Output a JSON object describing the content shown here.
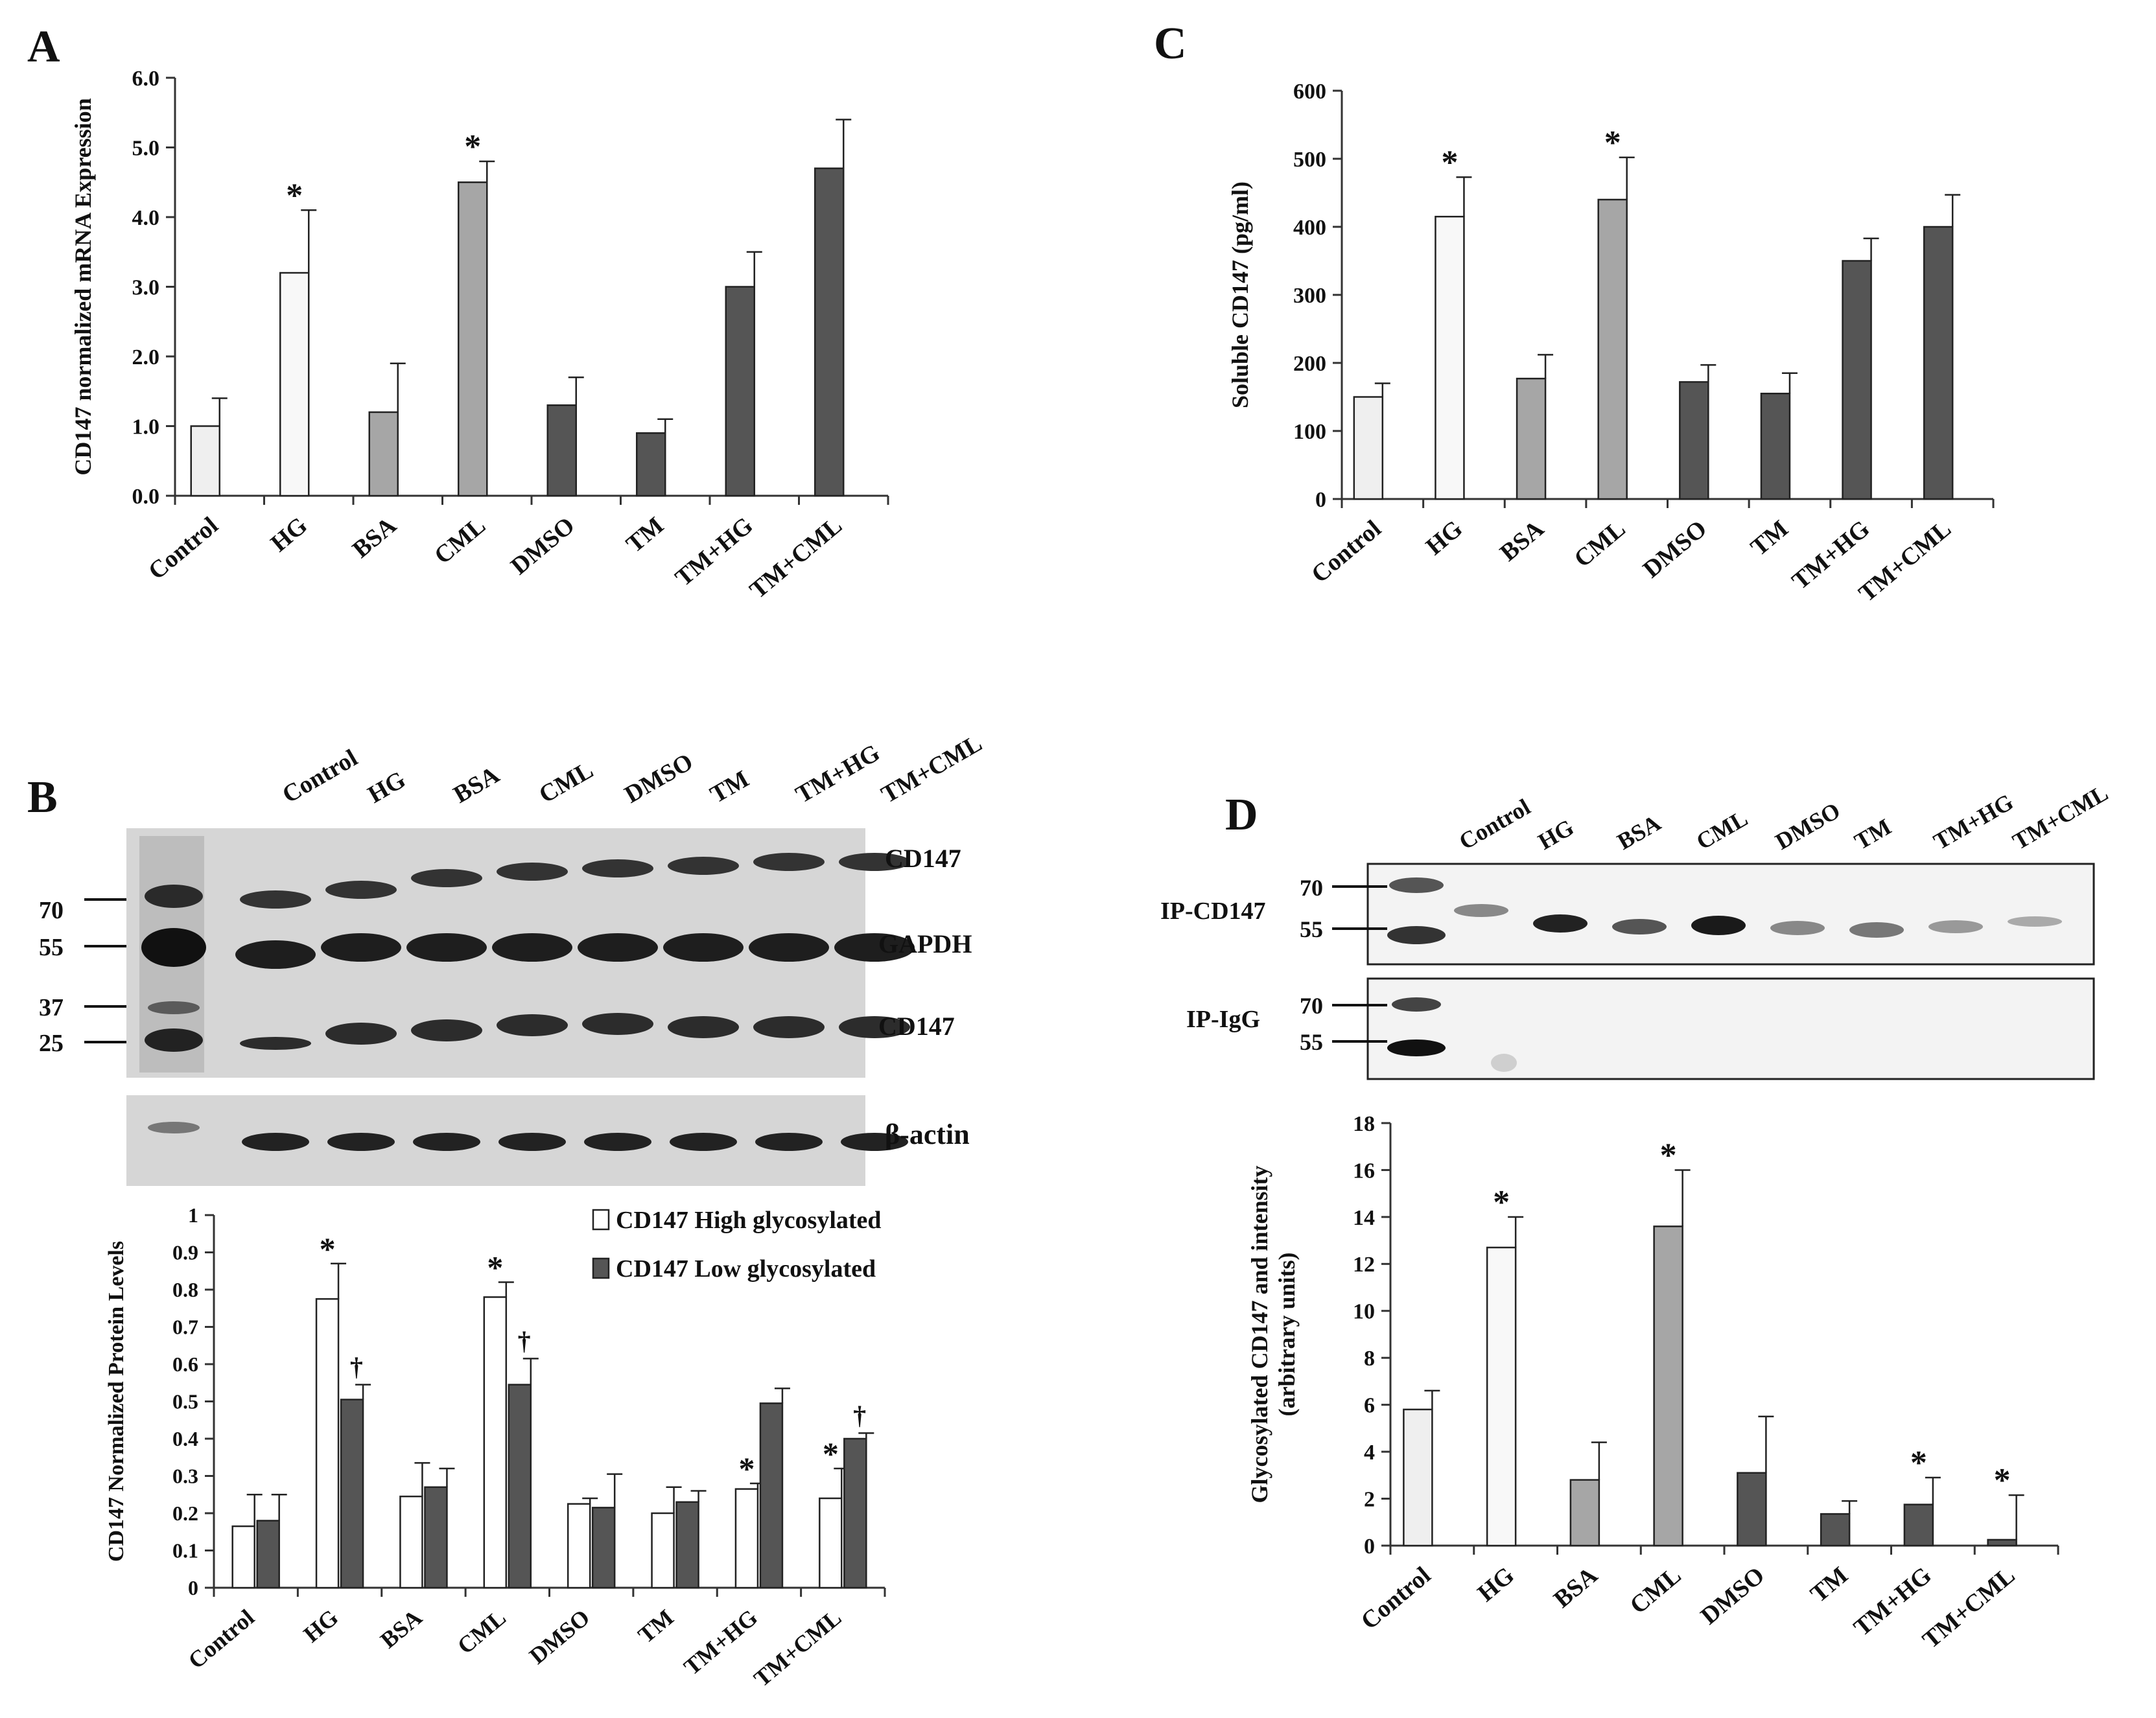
{
  "colors": {
    "control": "#efefef",
    "hg": "#f8f8f8",
    "bsa": "#a6a6a6",
    "cml": "#a6a6a6",
    "dark": "#555555",
    "white": "#ffffff",
    "axis": "#333333"
  },
  "chart_data": [
    {
      "panel": "A",
      "type": "bar",
      "categories": [
        "Control",
        "HG",
        "BSA",
        "CML",
        "DMSO",
        "TM",
        "TM+HG",
        "TM+CML"
      ],
      "values": [
        1.0,
        3.2,
        1.2,
        4.5,
        1.3,
        0.9,
        3.0,
        4.7
      ],
      "errors": [
        0.4,
        0.9,
        0.7,
        0.3,
        0.4,
        0.2,
        0.5,
        0.7
      ],
      "bar_colors": [
        "control",
        "hg",
        "bsa",
        "cml",
        "dark",
        "dark",
        "dark",
        "dark"
      ],
      "annotations": [
        "",
        "*",
        "",
        "*",
        "",
        "",
        "",
        ""
      ],
      "ylabel": "CD147 normalized mRNA Expression",
      "ylim": [
        0,
        6
      ],
      "yticks": [
        "0.0",
        "1.0",
        "2.0",
        "3.0",
        "4.0",
        "5.0",
        "6.0"
      ]
    },
    {
      "panel": "C",
      "type": "bar",
      "categories": [
        "Control",
        "HG",
        "BSA",
        "CML",
        "DMSO",
        "TM",
        "TM+HG",
        "TM+CML"
      ],
      "values": [
        150,
        415,
        177,
        440,
        172,
        155,
        350,
        400
      ],
      "errors": [
        20,
        58,
        35,
        62,
        25,
        30,
        33,
        47
      ],
      "bar_colors": [
        "control",
        "hg",
        "bsa",
        "cml",
        "dark",
        "dark",
        "dark",
        "dark"
      ],
      "annotations": [
        "",
        "*",
        "",
        "*",
        "",
        "",
        "",
        ""
      ],
      "ylabel": "Soluble CD147 (pg/ml)",
      "ylim": [
        0,
        600
      ],
      "yticks": [
        "0",
        "100",
        "200",
        "300",
        "400",
        "500",
        "600"
      ]
    },
    {
      "panel": "B",
      "type": "bar",
      "categories": [
        "Control",
        "HG",
        "BSA",
        "CML",
        "DMSO",
        "TM",
        "TM+HG",
        "TM+CML"
      ],
      "series": [
        {
          "name": "CD147 High glycosylated",
          "color": "white",
          "values": [
            0.165,
            0.775,
            0.245,
            0.78,
            0.225,
            0.2,
            0.265,
            0.24
          ],
          "errors": [
            0.085,
            0.095,
            0.09,
            0.04,
            0.015,
            0.07,
            0.015,
            0.08
          ],
          "annotations": [
            "",
            "*",
            "",
            "*",
            "",
            "",
            "*",
            "*"
          ]
        },
        {
          "name": "CD147 Low glycosylated",
          "color": "dark",
          "values": [
            0.18,
            0.505,
            0.27,
            0.545,
            0.215,
            0.23,
            0.495,
            0.4
          ],
          "errors": [
            0.07,
            0.04,
            0.05,
            0.07,
            0.09,
            0.03,
            0.04,
            0.015
          ],
          "annotations": [
            "",
            "†",
            "",
            "†",
            "",
            "",
            "",
            "†"
          ]
        }
      ],
      "ylabel": "CD147 Normalized Protein Levels",
      "ylim": [
        0,
        1
      ],
      "yticks": [
        "0",
        "0.1",
        "0.2",
        "0.3",
        "0.4",
        "0.5",
        "0.6",
        "0.7",
        "0.8",
        "0.9",
        "1"
      ]
    },
    {
      "panel": "D",
      "type": "bar",
      "categories": [
        "Control",
        "HG",
        "BSA",
        "CML",
        "DMSO",
        "TM",
        "TM+HG",
        "TM+CML"
      ],
      "values": [
        5.8,
        12.7,
        2.8,
        13.6,
        3.1,
        1.35,
        1.75,
        0.25
      ],
      "errors": [
        0.8,
        1.3,
        1.6,
        2.4,
        2.4,
        0.55,
        1.15,
        1.9
      ],
      "bar_colors": [
        "control",
        "hg",
        "bsa",
        "cml",
        "dark",
        "dark",
        "dark",
        "dark"
      ],
      "annotations": [
        "",
        "*",
        "",
        "*",
        "",
        "",
        "*",
        "*"
      ],
      "ylabel": "Glycosylated CD147 and intensity (arbitrary units)",
      "ylim": [
        0,
        18
      ],
      "yticks": [
        "0",
        "2",
        "4",
        "6",
        "8",
        "10",
        "12",
        "14",
        "16",
        "18"
      ]
    }
  ],
  "panel_labels": [
    "A",
    "B",
    "C",
    "D"
  ],
  "ylabel_d_lines": [
    "Glycosylated CD147 and intensity",
    "(arbitrary units)"
  ],
  "blot_b": {
    "lanes": [
      "Control",
      "HG",
      "BSA",
      "CML",
      "DMSO",
      "TM",
      "TM+HG",
      "TM+CML"
    ],
    "markers": [
      "70",
      "55",
      "37",
      "25"
    ],
    "band_labels": [
      "CD147",
      "GAPDH",
      "CD147",
      "β-actin"
    ]
  },
  "blot_d": {
    "lanes": [
      "Control",
      "HG",
      "BSA",
      "CML",
      "DMSO",
      "TM",
      "TM+HG",
      "TM+CML"
    ],
    "ip_labels": [
      "IP-CD147",
      "IP-IgG"
    ],
    "markers_top": [
      "70",
      "55"
    ],
    "markers_bottom": [
      "70",
      "55"
    ]
  }
}
